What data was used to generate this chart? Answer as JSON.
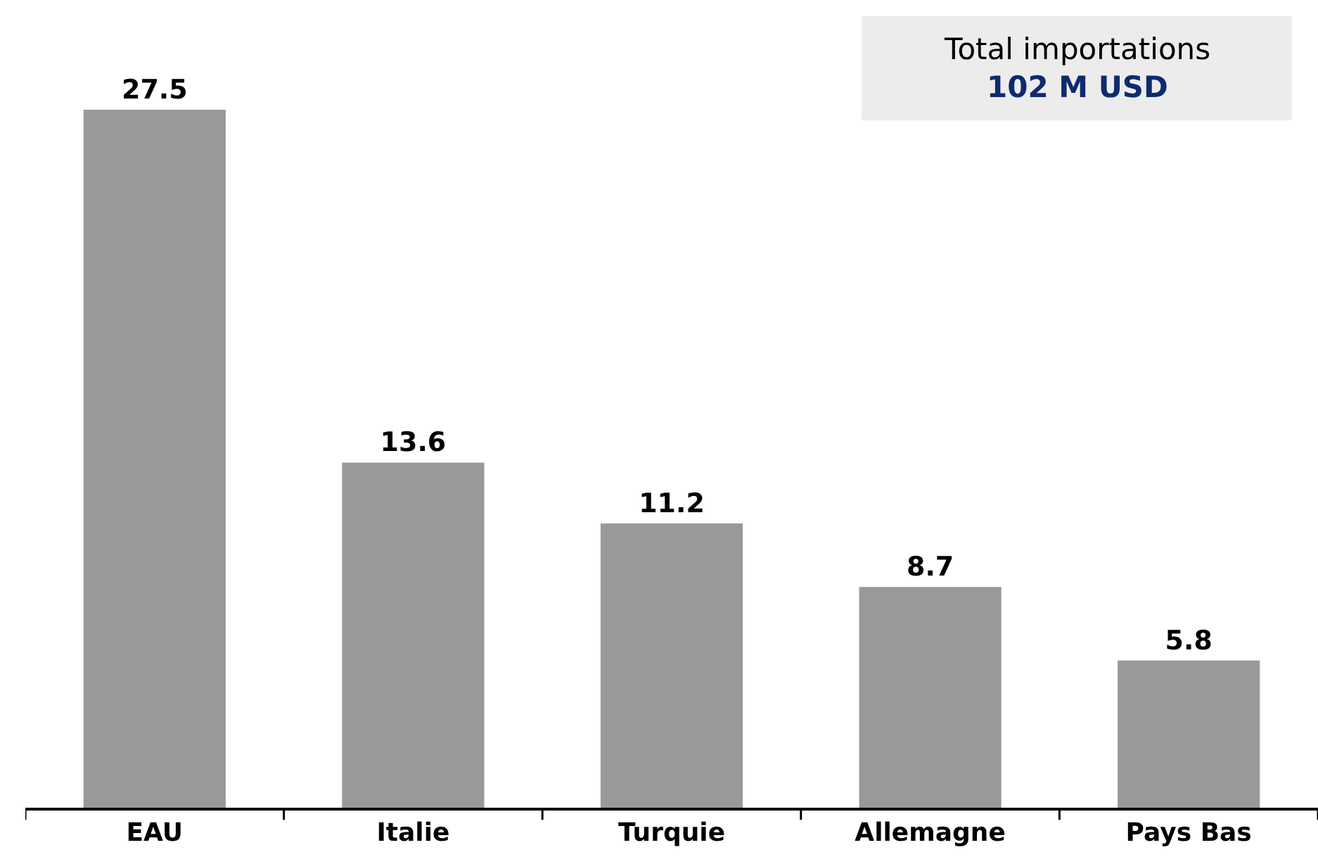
{
  "chart_data": {
    "type": "bar",
    "categories": [
      "EAU",
      "Italie",
      "Turquie",
      "Allemagne",
      "Pays Bas"
    ],
    "values": [
      27.5,
      13.6,
      11.2,
      8.7,
      5.8
    ],
    "color": "#98999b",
    "data_labels": true,
    "tick_labels": "x",
    "annotations": [
      "Total importations",
      "102 M USD"
    ]
  }
}
